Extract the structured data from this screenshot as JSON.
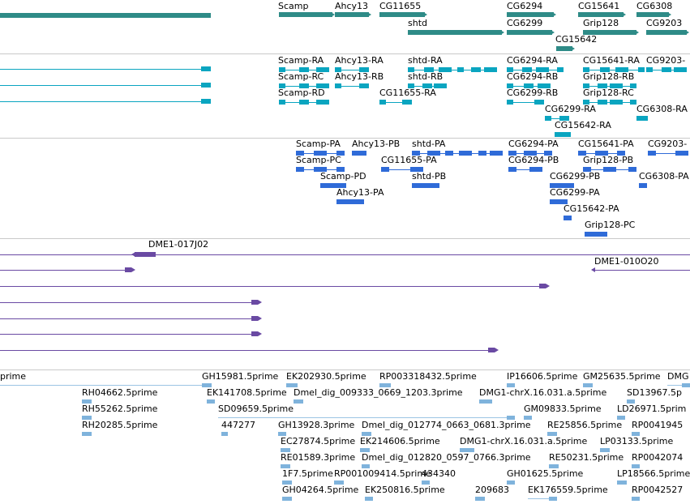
{
  "tracks": {
    "genes": {
      "color": "#2e8b87",
      "labels": [
        {
          "id": "g1",
          "text": "Scamp"
        },
        {
          "id": "g2",
          "text": "Ahcy13"
        },
        {
          "id": "g3",
          "text": "CG11655"
        },
        {
          "id": "g4",
          "text": "CG6294"
        },
        {
          "id": "g5",
          "text": "CG15641"
        },
        {
          "id": "g6",
          "text": "CG6308"
        },
        {
          "id": "g7",
          "text": "shtd"
        },
        {
          "id": "g8",
          "text": "CG6299"
        },
        {
          "id": "g9",
          "text": "Grip128"
        },
        {
          "id": "g10",
          "text": "CG9203"
        },
        {
          "id": "g11",
          "text": "CG15642"
        }
      ]
    },
    "transcripts": {
      "color": "#0aa5c0",
      "labels": [
        {
          "id": "t1",
          "text": "Scamp-RA"
        },
        {
          "id": "t2",
          "text": "Ahcy13-RA"
        },
        {
          "id": "t3",
          "text": "shtd-RA"
        },
        {
          "id": "t4",
          "text": "CG6294-RA"
        },
        {
          "id": "t5",
          "text": "CG15641-RA"
        },
        {
          "id": "t6",
          "text": "CG9203-"
        },
        {
          "id": "t7",
          "text": "Scamp-RC"
        },
        {
          "id": "t8",
          "text": "Ahcy13-RB"
        },
        {
          "id": "t9",
          "text": "shtd-RB"
        },
        {
          "id": "t10",
          "text": "CG6294-RB"
        },
        {
          "id": "t11",
          "text": "Grip128-RB"
        },
        {
          "id": "t12",
          "text": "Scamp-RD"
        },
        {
          "id": "t13",
          "text": "CG11655-RA"
        },
        {
          "id": "t14",
          "text": "CG6299-RB"
        },
        {
          "id": "t15",
          "text": "Grip128-RC"
        },
        {
          "id": "t16",
          "text": "CG6299-RA"
        },
        {
          "id": "t17",
          "text": "CG6308-RA"
        },
        {
          "id": "t18",
          "text": "CG15642-RA"
        }
      ]
    },
    "proteins": {
      "color": "#2f6bd8",
      "labels": [
        {
          "id": "p1",
          "text": "Scamp-PA"
        },
        {
          "id": "p2",
          "text": "Ahcy13-PB"
        },
        {
          "id": "p3",
          "text": "shtd-PA"
        },
        {
          "id": "p4",
          "text": "CG6294-PA"
        },
        {
          "id": "p5",
          "text": "CG15641-PA"
        },
        {
          "id": "p6",
          "text": "CG9203-"
        },
        {
          "id": "p7",
          "text": "Scamp-PC"
        },
        {
          "id": "p8",
          "text": "CG11655-PA"
        },
        {
          "id": "p9",
          "text": "CG6294-PB"
        },
        {
          "id": "p10",
          "text": "Grip128-PB"
        },
        {
          "id": "p11",
          "text": "Scamp-PD"
        },
        {
          "id": "p12",
          "text": "shtd-PB"
        },
        {
          "id": "p13",
          "text": "CG6299-PB"
        },
        {
          "id": "p14",
          "text": "CG6308-PA"
        },
        {
          "id": "p15",
          "text": "Ahcy13-PA"
        },
        {
          "id": "p16",
          "text": "CG6299-PA"
        },
        {
          "id": "p17",
          "text": "CG15642-PA"
        },
        {
          "id": "p18",
          "text": "Grip128-PC"
        }
      ]
    },
    "clones": {
      "color": "#6a4aa3",
      "labels": [
        {
          "id": "c1",
          "text": "DME1-017J02"
        },
        {
          "id": "c2",
          "text": "DME1-010O20"
        }
      ]
    },
    "ests": {
      "color": "#7fb3dc",
      "line_color": "#9cc4e4",
      "labels": [
        {
          "id": "e1",
          "text": "prime"
        },
        {
          "id": "e2",
          "text": "GH15981.5prime"
        },
        {
          "id": "e3",
          "text": "EK202930.5prime"
        },
        {
          "id": "e4",
          "text": "RP003318432.5prime"
        },
        {
          "id": "e5",
          "text": "IP16606.5prime"
        },
        {
          "id": "e6",
          "text": "GM25635.5prime"
        },
        {
          "id": "e7",
          "text": "DMG"
        },
        {
          "id": "e8",
          "text": "RH04662.5prime"
        },
        {
          "id": "e9",
          "text": "EK141708.5prime"
        },
        {
          "id": "e10",
          "text": "Dmel_dig_009333_0669_1203.3prime"
        },
        {
          "id": "e11",
          "text": "DMG1-chrX.16.031.a.5prime"
        },
        {
          "id": "e12",
          "text": "SD13967.5p"
        },
        {
          "id": "e13",
          "text": "RH55262.5prime"
        },
        {
          "id": "e14",
          "text": "SD09659.5prime"
        },
        {
          "id": "e15",
          "text": "GM09833.5prime"
        },
        {
          "id": "e16",
          "text": "LD26971.5prim"
        },
        {
          "id": "e17",
          "text": "RH20285.5prime"
        },
        {
          "id": "e18",
          "text": "447277"
        },
        {
          "id": "e19",
          "text": "GH13928.3prime"
        },
        {
          "id": "e20",
          "text": "Dmel_dig_012774_0663_0681.3prime"
        },
        {
          "id": "e21",
          "text": "RE25856.5prime"
        },
        {
          "id": "e22",
          "text": "RP0041945"
        },
        {
          "id": "e23",
          "text": "EC27874.5prime"
        },
        {
          "id": "e24",
          "text": "EK214606.5prime"
        },
        {
          "id": "e25",
          "text": "DMG1-chrX.16.031.a.5prime"
        },
        {
          "id": "e26",
          "text": "LP03133.5prime"
        },
        {
          "id": "e27",
          "text": "RE01589.3prime"
        },
        {
          "id": "e28",
          "text": "Dmel_dig_012820_0597_0766.3prime"
        },
        {
          "id": "e29",
          "text": "RE50231.5prime"
        },
        {
          "id": "e30",
          "text": "RP0042074"
        },
        {
          "id": "e31",
          "text": "1F7.5prime"
        },
        {
          "id": "e32",
          "text": "RP001009414.5prime"
        },
        {
          "id": "e33",
          "text": "434340"
        },
        {
          "id": "e34",
          "text": "GH01625.5prime"
        },
        {
          "id": "e35",
          "text": "LP18566.5prime"
        },
        {
          "id": "e36",
          "text": "GH04264.5prime"
        },
        {
          "id": "e37",
          "text": "EK250816.5prime"
        },
        {
          "id": "e38",
          "text": "209683"
        },
        {
          "id": "e39",
          "text": "EK176559.5prime"
        },
        {
          "id": "e40",
          "text": "RP0042527"
        }
      ]
    }
  }
}
